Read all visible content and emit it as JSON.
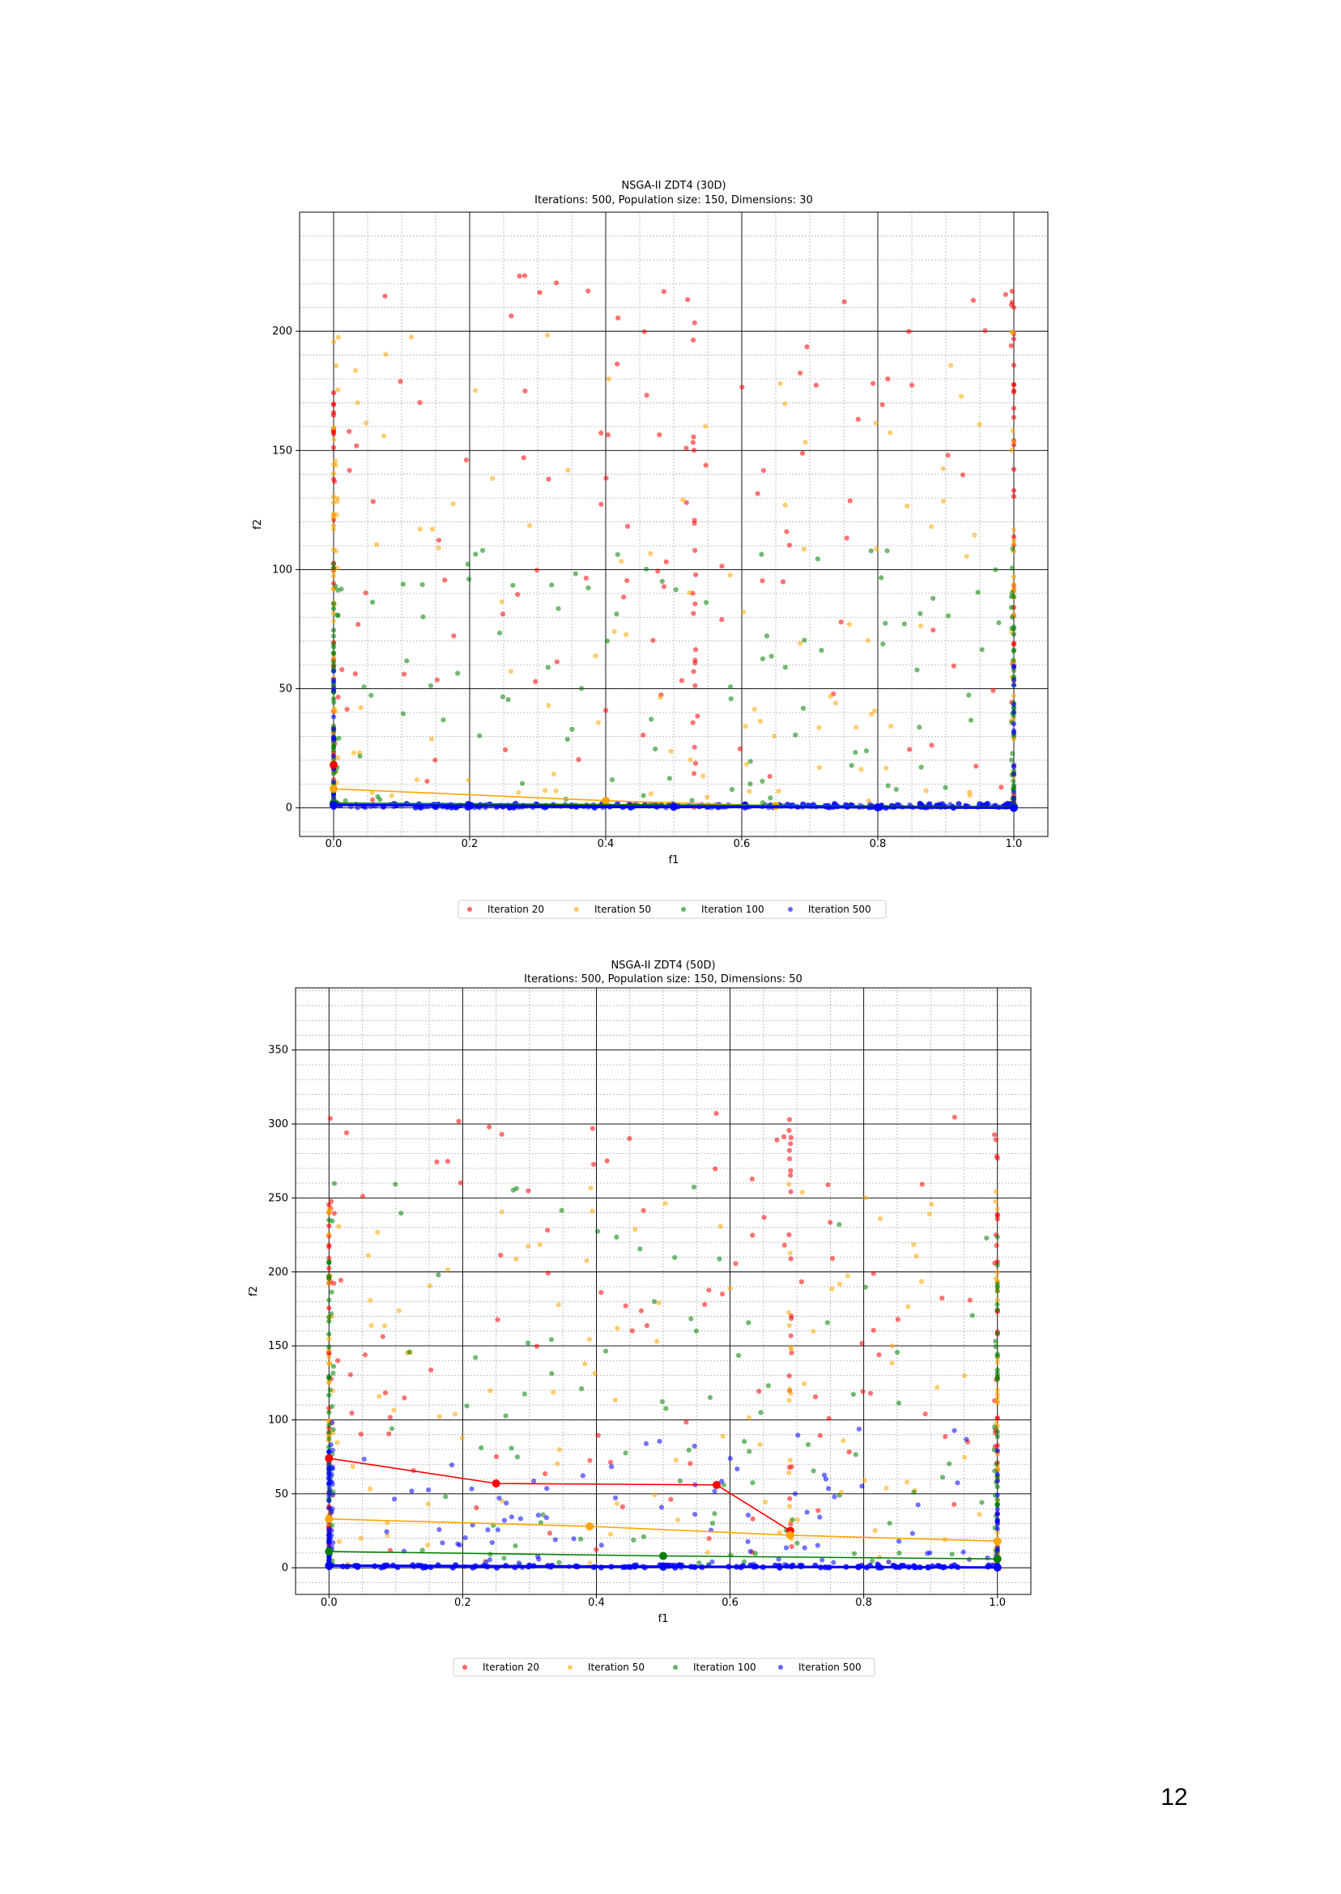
{
  "page": {
    "number": "12"
  },
  "colors": {
    "it20": "#ff0000",
    "it50": "#ffa500",
    "it100": "#008000",
    "it500": "#0000ff"
  },
  "chart_data": [
    {
      "type": "scatter",
      "title": "NSGA-II ZDT4 (30D)",
      "subtitle": "Iterations: 500, Population size: 150, Dimensions: 30",
      "xlabel": "f1",
      "ylabel": "f2",
      "xlim": [
        -0.05,
        1.05
      ],
      "ylim": [
        -12,
        250
      ],
      "xticks": [
        0.0,
        0.2,
        0.4,
        0.6,
        0.8,
        1.0
      ],
      "xtick_labels": [
        "0.0",
        "0.2",
        "0.4",
        "0.6",
        "0.8",
        "1.0"
      ],
      "yticks": [
        0,
        50,
        100,
        150,
        200
      ],
      "ytick_labels": [
        "0",
        "50",
        "100",
        "150",
        "200"
      ],
      "grid": true,
      "legend_placement": "below",
      "series": [
        {
          "name": "Iteration 20",
          "color": "#ff0000",
          "count": 150,
          "clusters": [
            [
              0,
              0.06
            ],
            [
              0.53,
              0.03
            ],
            [
              1.0,
              0.06
            ]
          ],
          "ymax": 225,
          "ypow": 0.9,
          "seed": 11,
          "front": [
            [
              0.0,
              18
            ]
          ]
        },
        {
          "name": "Iteration 50",
          "color": "#ffa500",
          "count": 150,
          "clusters": [
            [
              0,
              0.1
            ],
            [
              1.0,
              0.05
            ]
          ],
          "ymax": 200,
          "ypow": 1.3,
          "seed": 23,
          "front": [
            [
              0.0,
              8
            ],
            [
              0.4,
              3
            ],
            [
              0.65,
              0.8
            ]
          ]
        },
        {
          "name": "Iteration 100",
          "color": "#008000",
          "count": 150,
          "clusters": [
            [
              0,
              0.12
            ],
            [
              1.0,
              0.05
            ]
          ],
          "ymax": 110,
          "ypow": 1.3,
          "seed": 37,
          "front": [
            [
              0.0,
              2
            ],
            [
              1.0,
              0.5
            ]
          ]
        },
        {
          "name": "Iteration 500",
          "color": "#0000ff",
          "count": 150,
          "clusters": [],
          "ymax": 0,
          "ypow": 1,
          "seed": 41,
          "front": [
            [
              0.0,
              1.2
            ],
            [
              0.2,
              0.9
            ],
            [
              0.5,
              0.5
            ],
            [
              0.8,
              0.2
            ],
            [
              1.0,
              0.0
            ]
          ]
        }
      ]
    },
    {
      "type": "scatter",
      "title": "NSGA-II ZDT4 (50D)",
      "subtitle": "Iterations: 500, Population size: 150, Dimensions: 50",
      "xlabel": "f1",
      "ylabel": "f2",
      "xlim": [
        -0.05,
        1.05
      ],
      "ylim": [
        -18,
        392
      ],
      "xticks": [
        0.0,
        0.2,
        0.4,
        0.6,
        0.8,
        1.0
      ],
      "xtick_labels": [
        "0.0",
        "0.2",
        "0.4",
        "0.6",
        "0.8",
        "1.0"
      ],
      "yticks": [
        0,
        50,
        100,
        150,
        200,
        250,
        300,
        350
      ],
      "ytick_labels": [
        "0",
        "50",
        "100",
        "150",
        "200",
        "250",
        "300",
        "350"
      ],
      "grid": true,
      "legend_placement": "below",
      "series": [
        {
          "name": "Iteration 20",
          "color": "#ff0000",
          "count": 150,
          "clusters": [
            [
              0,
              0.06
            ],
            [
              0.69,
              0.03
            ],
            [
              1.0,
              0.06
            ]
          ],
          "ymax": 310,
          "ypow": 0.85,
          "seed": 53,
          "front": [
            [
              0.0,
              74
            ],
            [
              0.25,
              57
            ],
            [
              0.58,
              56
            ],
            [
              0.69,
              25
            ]
          ]
        },
        {
          "name": "Iteration 50",
          "color": "#ffa500",
          "count": 150,
          "clusters": [
            [
              0,
              0.08
            ],
            [
              0.69,
              0.03
            ],
            [
              1.0,
              0.05
            ]
          ],
          "ymax": 260,
          "ypow": 1.1,
          "seed": 67,
          "front": [
            [
              0.0,
              33
            ],
            [
              0.39,
              28
            ],
            [
              0.69,
              22
            ],
            [
              1.0,
              18
            ]
          ]
        },
        {
          "name": "Iteration 100",
          "color": "#008000",
          "count": 150,
          "clusters": [
            [
              0,
              0.1
            ],
            [
              1.0,
              0.06
            ]
          ],
          "ymax": 260,
          "ypow": 1.3,
          "seed": 79,
          "front": [
            [
              0.0,
              11
            ],
            [
              0.5,
              8
            ],
            [
              1.0,
              6
            ]
          ]
        },
        {
          "name": "Iteration 500",
          "color": "#0000ff",
          "count": 150,
          "clusters": [
            [
              0,
              0.08
            ]
          ],
          "ymax": 100,
          "ypow": 1.8,
          "seed": 83,
          "front": [
            [
              0.0,
              1.5
            ],
            [
              0.5,
              0.8
            ],
            [
              1.0,
              0.2
            ]
          ]
        }
      ]
    }
  ]
}
